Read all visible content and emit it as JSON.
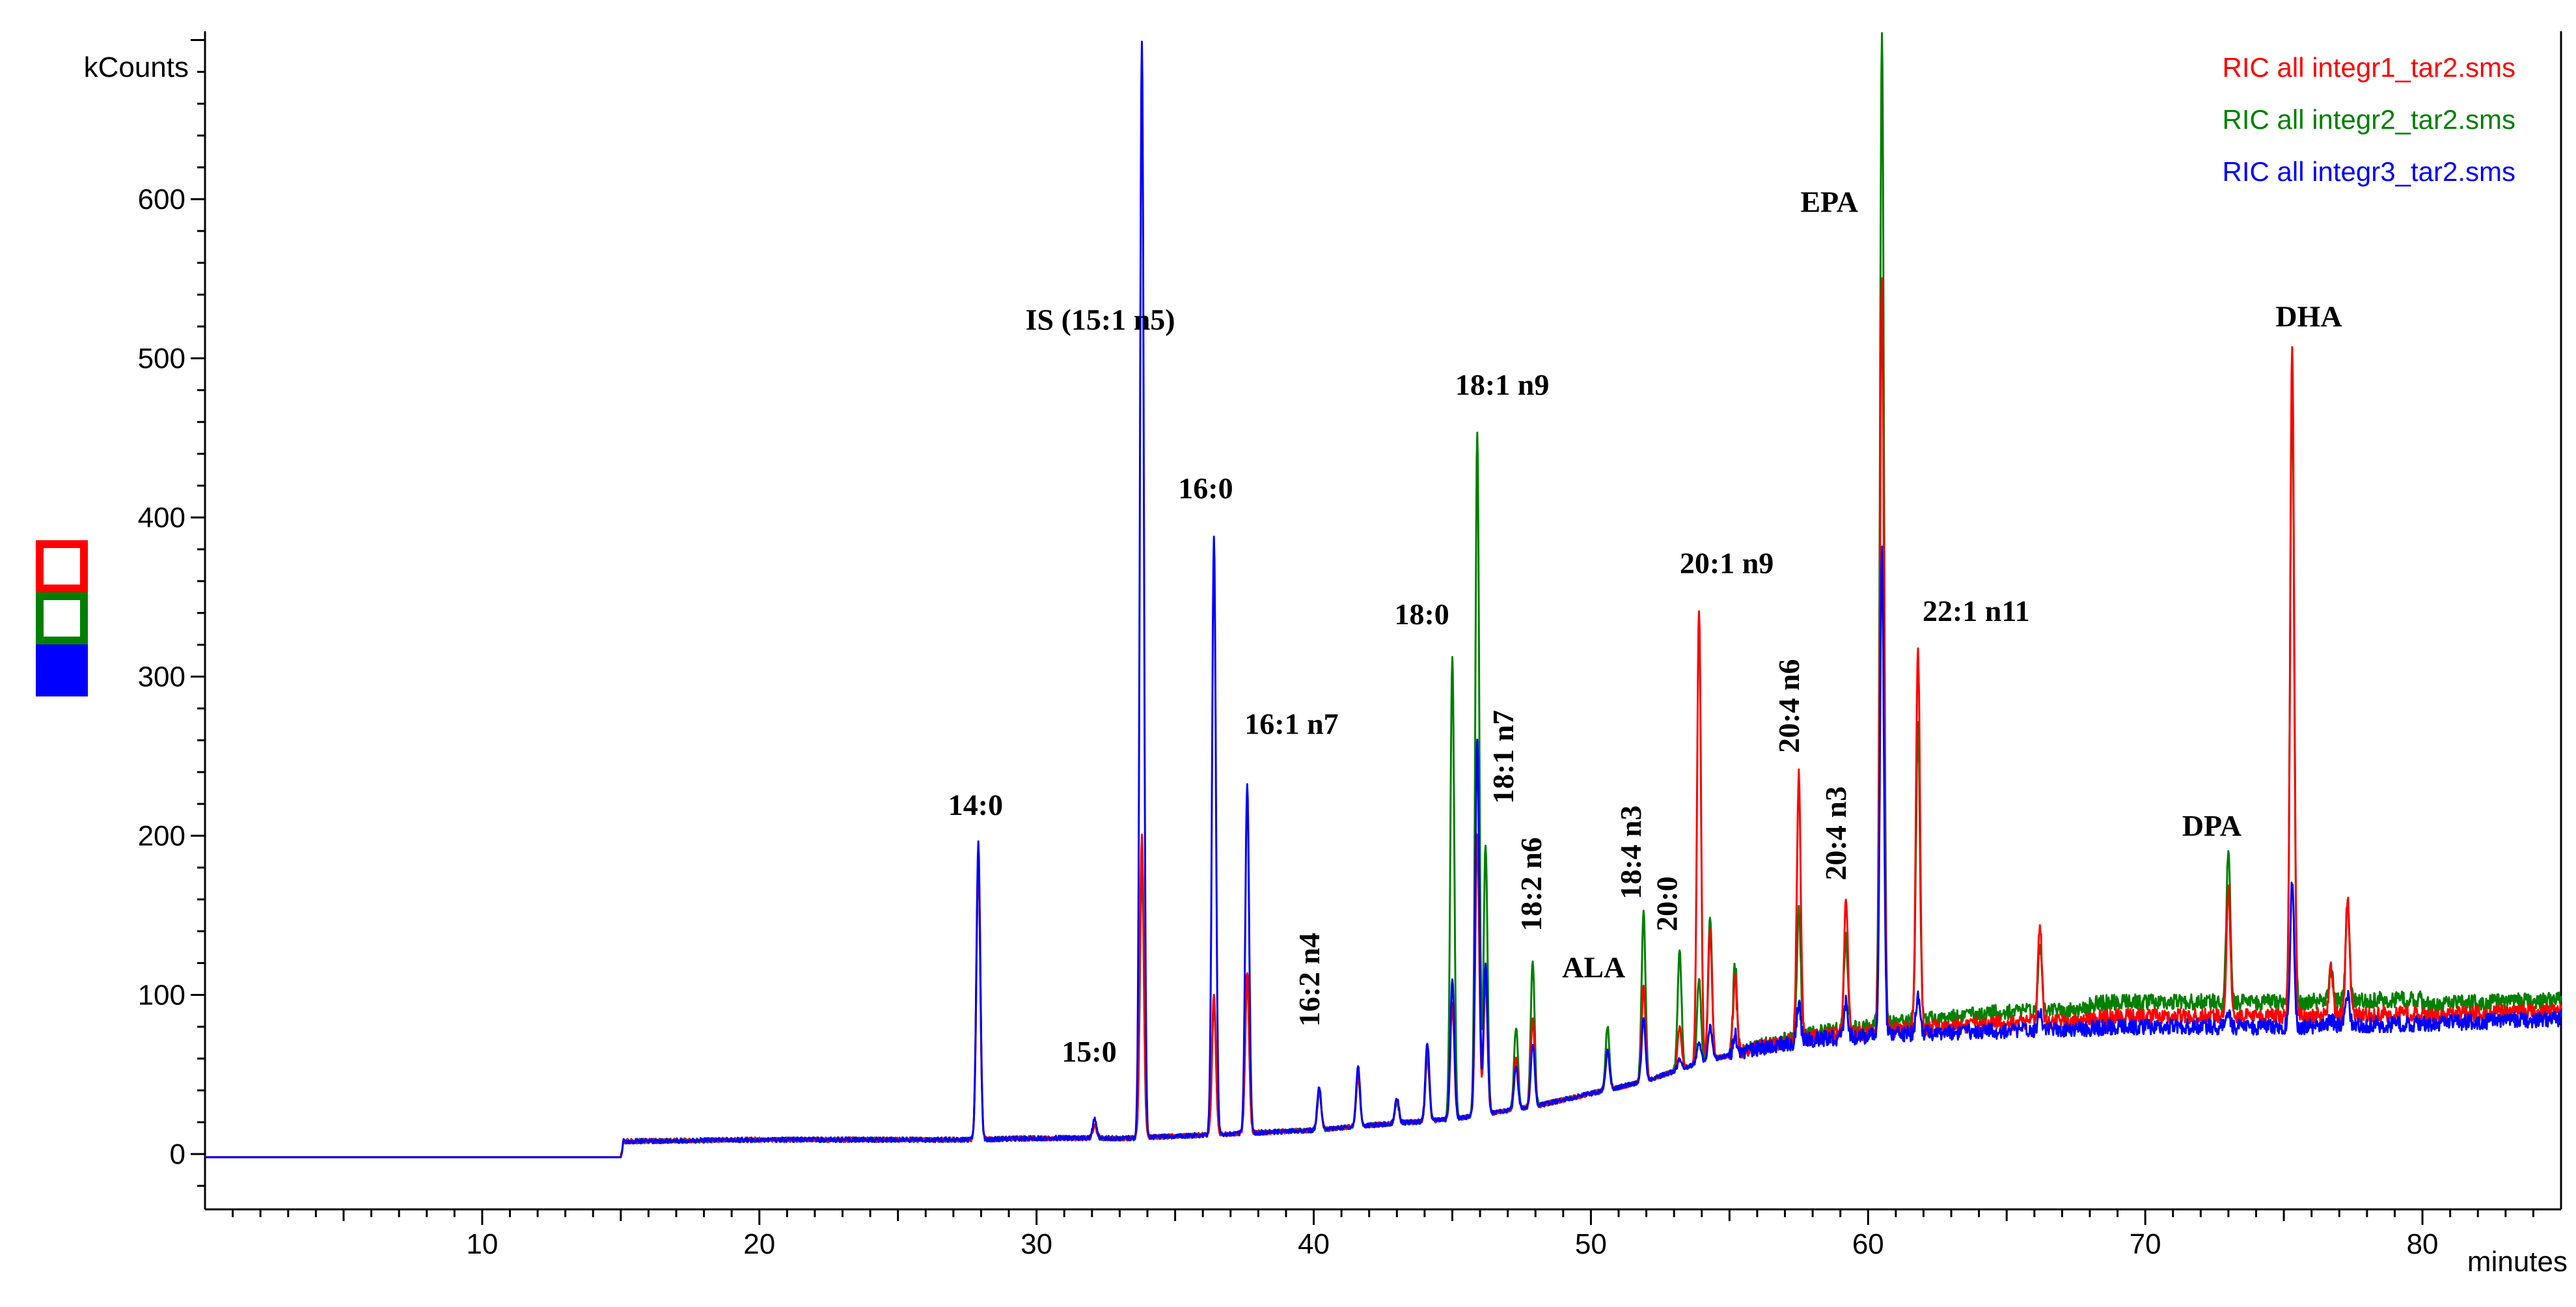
{
  "chart_data": {
    "type": "line",
    "ylabel": "kCounts",
    "xlabel": "minutes",
    "xlim": [
      0,
      85
    ],
    "ylim": [
      -40,
      700
    ],
    "x_ticks": [
      10,
      20,
      30,
      40,
      50,
      60,
      70,
      80
    ],
    "y_ticks": [
      0,
      100,
      200,
      300,
      400,
      500,
      600
    ],
    "grid": false,
    "legend_position": "top-right",
    "baseline": [
      [
        0,
        -2
      ],
      [
        15,
        -2
      ],
      [
        15.1,
        8
      ],
      [
        20,
        9
      ],
      [
        27.5,
        9
      ],
      [
        30,
        10
      ],
      [
        33.5,
        10
      ],
      [
        36,
        12
      ],
      [
        40,
        15
      ],
      [
        42,
        18
      ],
      [
        45,
        22
      ],
      [
        48,
        30
      ],
      [
        50,
        38
      ],
      [
        52,
        46
      ],
      [
        54,
        58
      ],
      [
        56,
        66
      ],
      [
        58,
        72
      ],
      [
        60,
        74
      ],
      [
        62,
        76
      ],
      [
        64,
        77
      ],
      [
        66,
        78
      ],
      [
        70,
        80
      ],
      [
        75,
        80
      ],
      [
        80,
        82
      ],
      [
        85,
        85
      ]
    ],
    "series": [
      {
        "name": "RIC all integr1_tar2.sms",
        "color": "#ff0000",
        "peaks": [
          [
            27.9,
            185
          ],
          [
            32.1,
            18
          ],
          [
            33.8,
            200
          ],
          [
            36.4,
            100
          ],
          [
            37.6,
            115
          ],
          [
            40.2,
            40
          ],
          [
            41.6,
            50
          ],
          [
            43.0,
            35
          ],
          [
            44.1,
            65
          ],
          [
            45.0,
            95
          ],
          [
            45.9,
            200
          ],
          [
            46.2,
            110
          ],
          [
            47.3,
            60
          ],
          [
            47.9,
            85
          ],
          [
            50.6,
            65
          ],
          [
            51.9,
            105
          ],
          [
            53.2,
            80
          ],
          [
            53.9,
            342
          ],
          [
            54.3,
            140
          ],
          [
            55.2,
            110
          ],
          [
            57.5,
            238
          ],
          [
            59.2,
            157
          ],
          [
            60.5,
            550
          ],
          [
            61.8,
            315
          ],
          [
            66.2,
            140
          ],
          [
            73.0,
            160
          ],
          [
            75.3,
            505
          ],
          [
            77.3,
            155
          ],
          [
            76.7,
            110
          ]
        ],
        "tail_offset": 5
      },
      {
        "name": "RIC all integr2_tar2.sms",
        "color": "#008000",
        "peaks": [
          [
            27.9,
            185
          ],
          [
            32.1,
            18
          ],
          [
            33.8,
            180
          ],
          [
            36.4,
            95
          ],
          [
            37.6,
            110
          ],
          [
            40.2,
            38
          ],
          [
            41.6,
            48
          ],
          [
            43.0,
            33
          ],
          [
            44.1,
            60
          ],
          [
            45.0,
            313
          ],
          [
            45.9,
            453
          ],
          [
            46.2,
            195
          ],
          [
            47.3,
            80
          ],
          [
            47.9,
            122
          ],
          [
            50.6,
            80
          ],
          [
            51.9,
            152
          ],
          [
            53.2,
            128
          ],
          [
            53.9,
            110
          ],
          [
            54.3,
            150
          ],
          [
            55.2,
            120
          ],
          [
            57.5,
            150
          ],
          [
            59.2,
            130
          ],
          [
            60.5,
            700
          ],
          [
            61.8,
            260
          ],
          [
            66.2,
            120
          ],
          [
            73.0,
            175
          ],
          [
            75.3,
            475
          ],
          [
            77.3,
            140
          ],
          [
            76.7,
            100
          ]
        ],
        "tail_offset": 12
      },
      {
        "name": "RIC all integr3_tar2.sms",
        "color": "#0000ff",
        "peaks": [
          [
            27.9,
            195
          ],
          [
            32.1,
            22
          ],
          [
            33.8,
            700
          ],
          [
            36.4,
            387
          ],
          [
            37.6,
            232
          ],
          [
            40.2,
            42
          ],
          [
            41.6,
            55
          ],
          [
            43.0,
            35
          ],
          [
            44.1,
            70
          ],
          [
            45.0,
            110
          ],
          [
            45.9,
            260
          ],
          [
            46.2,
            120
          ],
          [
            47.3,
            55
          ],
          [
            47.9,
            70
          ],
          [
            50.6,
            65
          ],
          [
            51.9,
            85
          ],
          [
            53.2,
            60
          ],
          [
            53.9,
            70
          ],
          [
            54.3,
            80
          ],
          [
            55.2,
            75
          ],
          [
            57.5,
            95
          ],
          [
            59.2,
            95
          ],
          [
            60.5,
            378
          ],
          [
            61.8,
            100
          ],
          [
            66.2,
            90
          ],
          [
            73.0,
            90
          ],
          [
            75.3,
            170
          ],
          [
            77.3,
            100
          ],
          [
            76.7,
            85
          ]
        ],
        "tail_offset": 0
      }
    ],
    "annotations": [
      {
        "text": "14:0",
        "x": 27.8,
        "y": 213,
        "rotate": false
      },
      {
        "text": "15:0",
        "x": 31.9,
        "y": 58,
        "rotate": false
      },
      {
        "text": "IS (15:1 n5)",
        "x": 32.3,
        "y": 518,
        "rotate": false
      },
      {
        "text": "16:0",
        "x": 36.1,
        "y": 412,
        "rotate": false
      },
      {
        "text": "16:1 n7",
        "x": 39.2,
        "y": 264,
        "rotate": false
      },
      {
        "text": "16:2 n4",
        "x": 40.2,
        "y": 80,
        "rotate": true
      },
      {
        "text": "18:0",
        "x": 43.9,
        "y": 333,
        "rotate": false
      },
      {
        "text": "18:1 n9",
        "x": 46.8,
        "y": 477,
        "rotate": false
      },
      {
        "text": "18:1 n7",
        "x": 47.2,
        "y": 220,
        "rotate": true
      },
      {
        "text": "18:2 n6",
        "x": 48.2,
        "y": 140,
        "rotate": true
      },
      {
        "text": "ALA",
        "x": 50.1,
        "y": 111,
        "rotate": false
      },
      {
        "text": "18:4 n3",
        "x": 51.8,
        "y": 160,
        "rotate": true
      },
      {
        "text": "20:0",
        "x": 53.1,
        "y": 140,
        "rotate": true
      },
      {
        "text": "20:1 n9",
        "x": 54.9,
        "y": 365,
        "rotate": false
      },
      {
        "text": "20:4 n6",
        "x": 57.5,
        "y": 252,
        "rotate": true
      },
      {
        "text": "20:4 n3",
        "x": 59.2,
        "y": 172,
        "rotate": true
      },
      {
        "text": "EPA",
        "x": 58.6,
        "y": 592,
        "rotate": false
      },
      {
        "text": "22:1 n11",
        "x": 63.9,
        "y": 335,
        "rotate": false
      },
      {
        "text": "DPA",
        "x": 72.4,
        "y": 200,
        "rotate": false
      },
      {
        "text": "DHA",
        "x": 75.9,
        "y": 520,
        "rotate": false
      }
    ]
  },
  "legend_swatches": [
    {
      "color": "#ff0000",
      "filled": false
    },
    {
      "color": "#008000",
      "filled": false
    },
    {
      "color": "#0000ff",
      "filled": true
    }
  ]
}
